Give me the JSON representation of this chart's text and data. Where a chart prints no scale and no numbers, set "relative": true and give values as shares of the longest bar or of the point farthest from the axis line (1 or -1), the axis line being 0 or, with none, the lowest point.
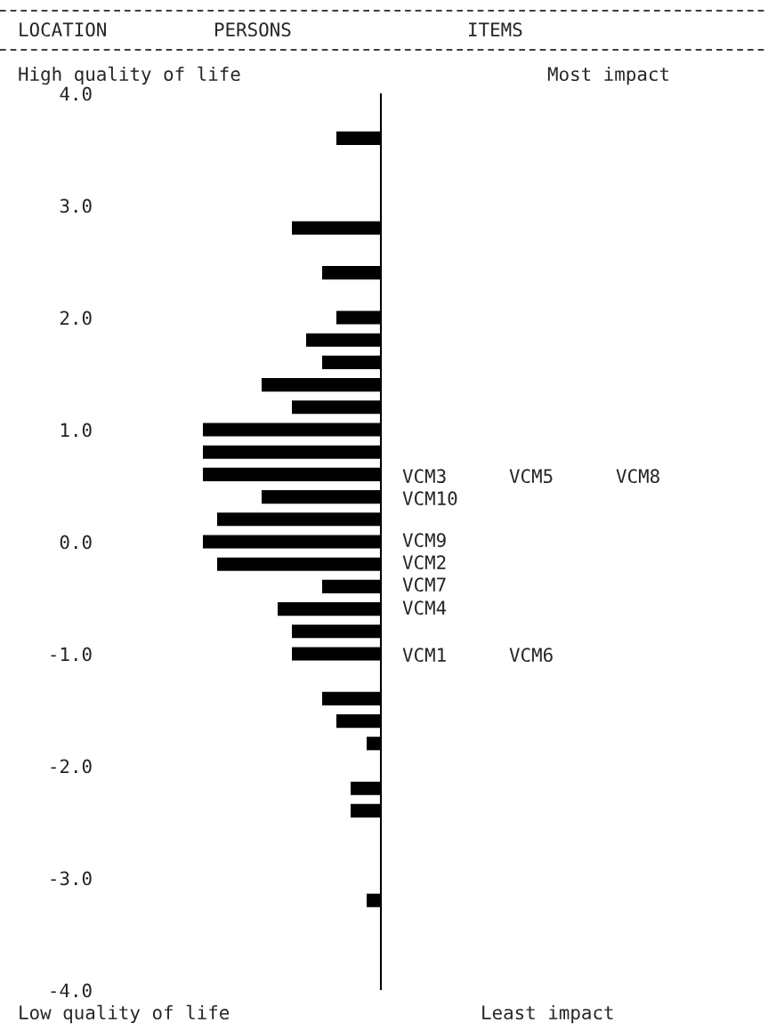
{
  "chart_data": {
    "type": "bar",
    "orientation": "horizontal",
    "relative": true,
    "x": [
      3.6,
      2.8,
      2.4,
      2.0,
      1.8,
      1.6,
      1.4,
      1.2,
      1.0,
      0.8,
      0.6,
      0.4,
      0.2,
      0.0,
      -0.2,
      -0.4,
      -0.6,
      -0.8,
      -1.0,
      -1.4,
      -1.6,
      -1.8,
      -2.2,
      -2.4,
      -3.2
    ],
    "series": [
      {
        "color": "#000000",
        "values": [
          0.25,
          0.5,
          0.33,
          0.25,
          0.42,
          0.33,
          0.67,
          0.5,
          1,
          1,
          1,
          0.67,
          0.92,
          1,
          0.92,
          0.33,
          0.58,
          0.5,
          0.5,
          0.33,
          0.25,
          0.08,
          0.17,
          0.17,
          0.08
        ]
      }
    ],
    "ylim": [
      -4.0,
      4.0
    ],
    "yticks": [
      {
        "value": 4,
        "label": "4.0"
      },
      {
        "value": 3,
        "label": "3.0"
      },
      {
        "value": 2,
        "label": "2.0"
      },
      {
        "value": 1,
        "label": "1.0"
      },
      {
        "value": 0,
        "label": "0.0"
      },
      {
        "value": -1,
        "label": "-1.0"
      },
      {
        "value": -2,
        "label": "-2.0"
      },
      {
        "value": -3,
        "label": "-3.0"
      },
      {
        "value": -4,
        "label": "-4.0"
      }
    ],
    "tick_labels": "y",
    "annotations": [
      "LOCATION",
      "PERSONS",
      "ITEMS",
      "High quality of life",
      "Most impact",
      "Low quality of life",
      "Least impact",
      "VCM3",
      "VCM5",
      "VCM8",
      "VCM10",
      "VCM9",
      "VCM2",
      "VCM7",
      "VCM4",
      "VCM1",
      "VCM6"
    ]
  }
}
